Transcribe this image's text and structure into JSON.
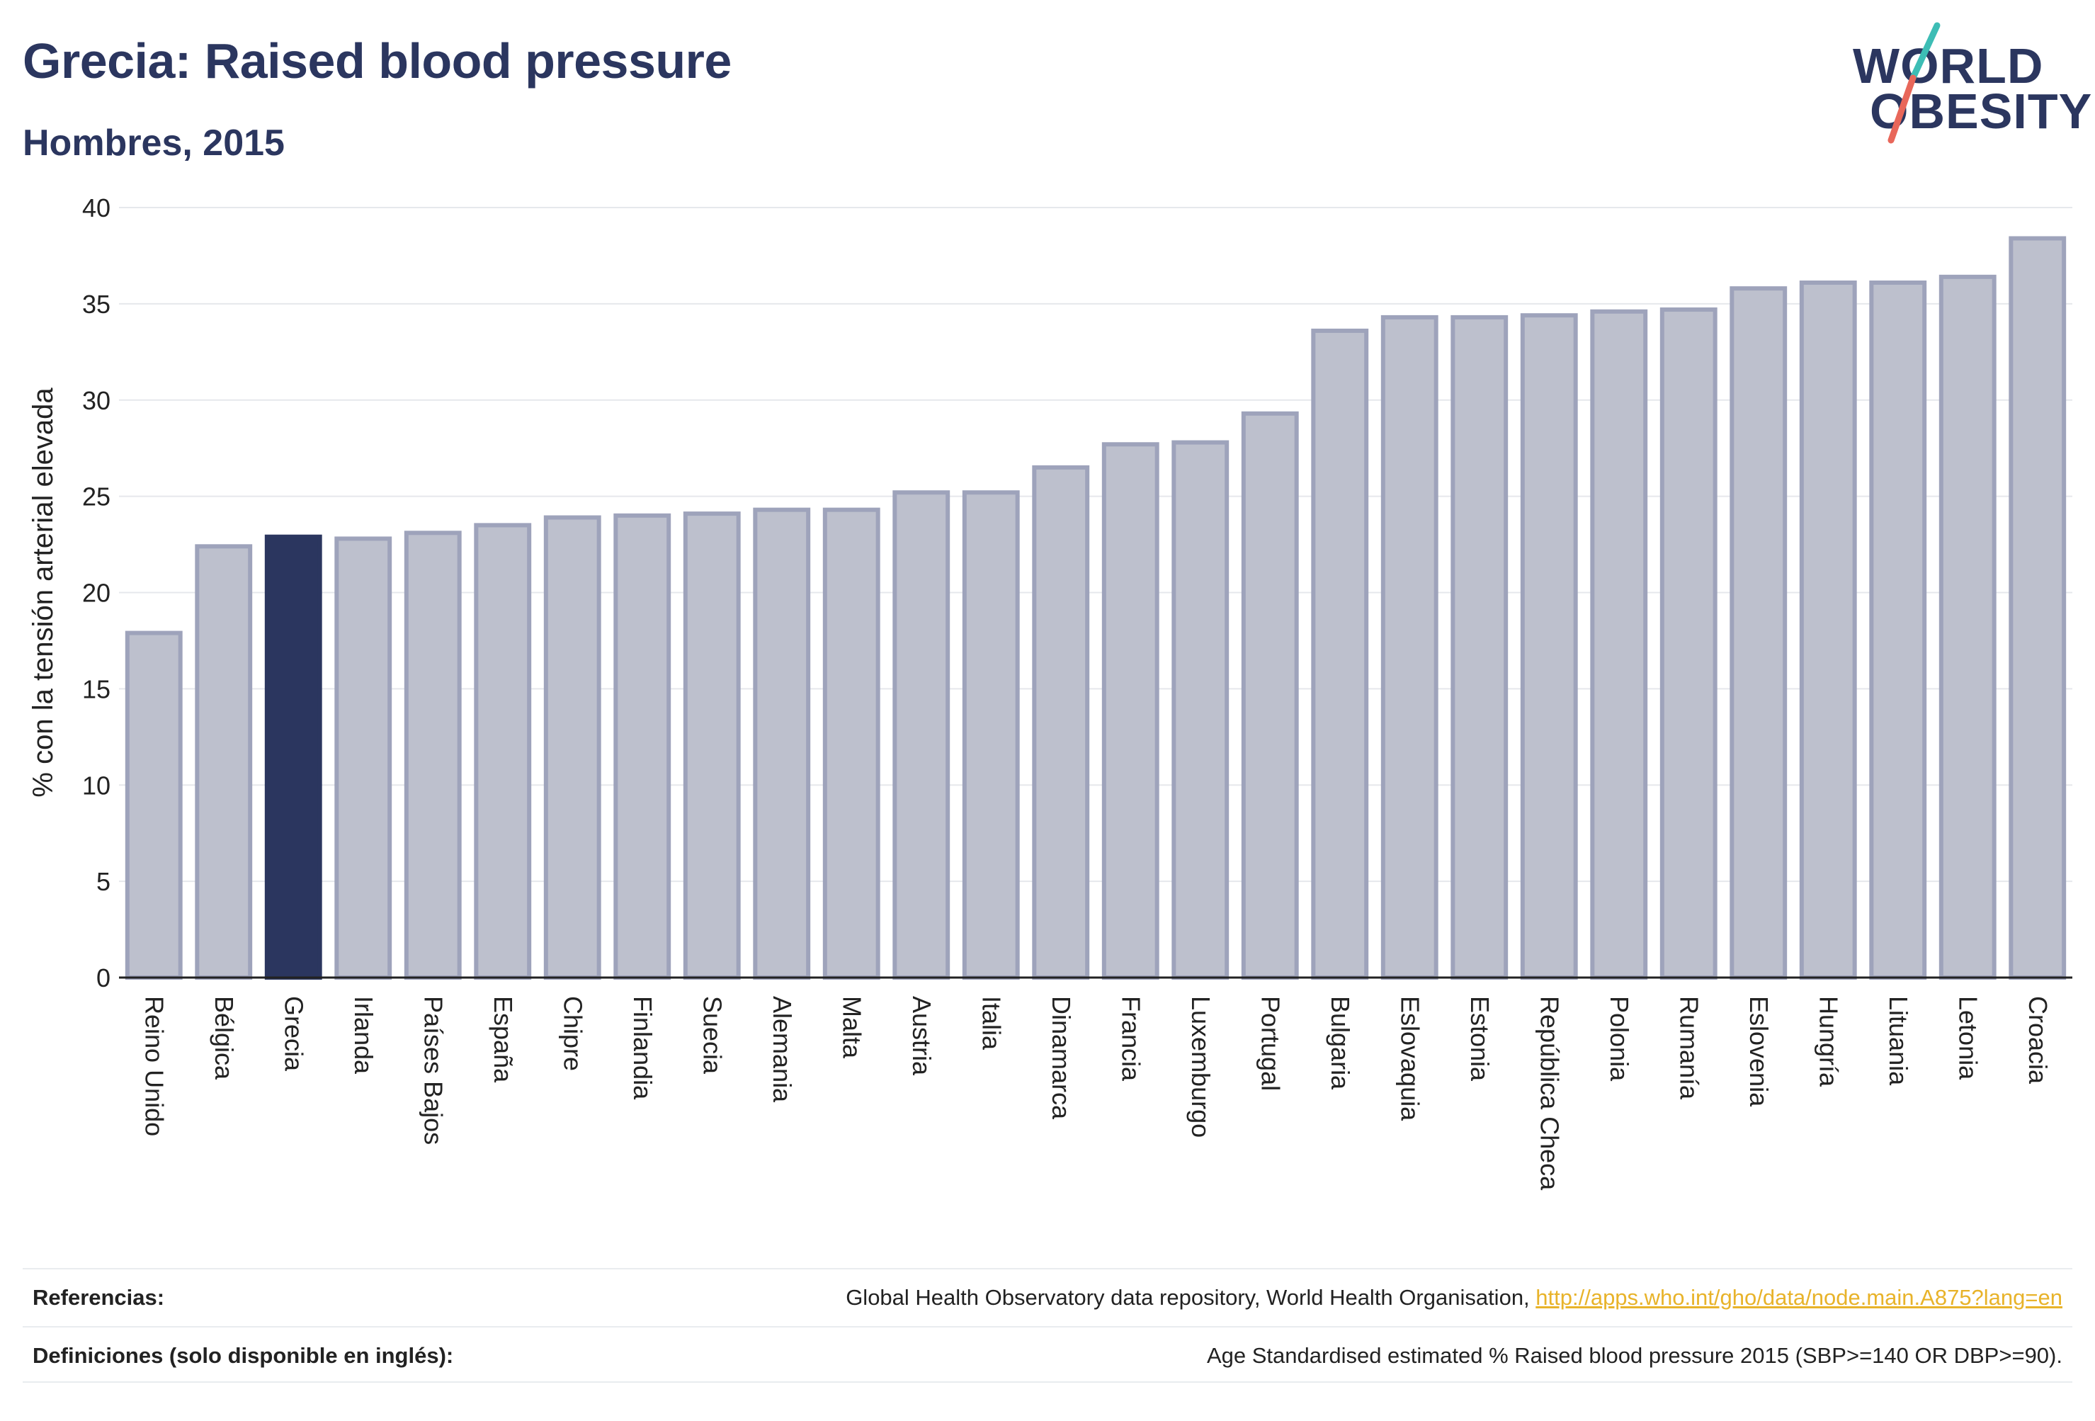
{
  "header": {
    "title": "Grecia: Raised blood pressure",
    "subtitle": "Hombres, 2015"
  },
  "logo": {
    "line1": "WORLD",
    "line2": "OBESITY",
    "accent_teal": "#3dbdb5",
    "accent_coral": "#e8675a"
  },
  "colors": {
    "highlight": "#2b365f",
    "bar_fill": "#bdc0cd",
    "bar_stroke": "#9ea3bb",
    "grid": "#e6e8ec",
    "axis": "#222222"
  },
  "chart_data": {
    "type": "bar",
    "ylabel": "% con la tensión arterial elevada",
    "xlabel": "",
    "ylim": [
      0,
      40
    ],
    "yticks": [
      0,
      5,
      10,
      15,
      20,
      25,
      30,
      35,
      40
    ],
    "grid": true,
    "highlight": "Grecia",
    "categories": [
      "Reino Unido",
      "Bélgica",
      "Grecia",
      "Irlanda",
      "Países Bajos",
      "España",
      "Chipre",
      "Finlandia",
      "Suecia",
      "Alemania",
      "Malta",
      "Austria",
      "Italia",
      "Dinamarca",
      "Francia",
      "Luxemburgo",
      "Portugal",
      "Bulgaria",
      "Eslovaquia",
      "Estonia",
      "República Checa",
      "Polonia",
      "Rumanía",
      "Eslovenia",
      "Hungría",
      "Lituania",
      "Letonia",
      "Croacia"
    ],
    "values": [
      17.9,
      22.4,
      22.9,
      22.8,
      23.1,
      23.5,
      23.9,
      24.0,
      24.1,
      24.3,
      24.3,
      25.2,
      25.2,
      26.5,
      27.7,
      27.8,
      29.3,
      33.6,
      34.3,
      34.3,
      34.4,
      34.6,
      34.7,
      35.8,
      36.1,
      36.1,
      36.4,
      38.4
    ]
  },
  "footer": {
    "references_label": "Referencias:",
    "references_text": "Global Health Observatory data repository, World Health Organisation, ",
    "references_link": "http://apps.who.int/gho/data/node.main.A875?lang=en",
    "definitions_label": "Definiciones (solo disponible en inglés):",
    "definitions_text": "Age Standardised estimated % Raised blood pressure 2015 (SBP>=140 OR DBP>=90)."
  }
}
